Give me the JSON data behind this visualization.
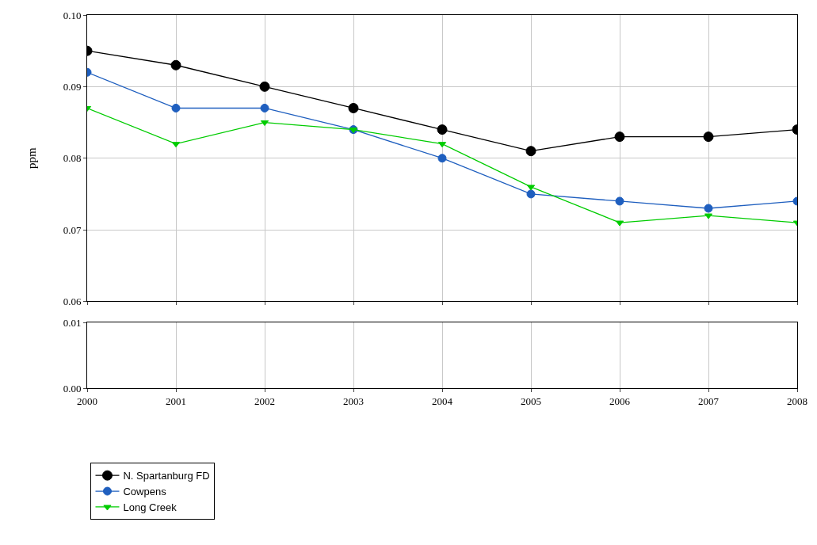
{
  "chart_data": [
    {
      "type": "line",
      "ylabel": "ppm",
      "x": [
        2000,
        2001,
        2002,
        2003,
        2004,
        2005,
        2006,
        2007,
        2008
      ],
      "xlim": [
        2000,
        2008
      ],
      "xticks": [
        2000,
        2001,
        2002,
        2003,
        2004,
        2005,
        2006,
        2007,
        2008
      ],
      "ylim": [
        0.06,
        0.1
      ],
      "yticks": [
        {
          "value": 0.06,
          "label": "0.06"
        },
        {
          "value": 0.07,
          "label": "0.07"
        },
        {
          "value": 0.08,
          "label": "0.08"
        },
        {
          "value": 0.09,
          "label": "0.09"
        },
        {
          "value": 0.1,
          "label": "0.10"
        }
      ],
      "tick_labels": "y",
      "grid": true,
      "legend": "bottom left",
      "line_style": "solid",
      "series": [
        {
          "name": "N. Spartanburg FD",
          "color": "#000000",
          "marker": "circle",
          "values": [
            0.095,
            0.093,
            0.09,
            0.087,
            0.084,
            0.081,
            0.083,
            0.083,
            0.084
          ]
        },
        {
          "name": "Cowpens",
          "color": "#1f5fbf",
          "marker": "circle",
          "values": [
            0.092,
            0.087,
            0.087,
            0.084,
            0.08,
            0.075,
            0.074,
            0.073,
            0.074
          ]
        },
        {
          "name": "Long Creek",
          "color": "#00cc00",
          "marker": "triangle",
          "values": [
            0.087,
            0.082,
            0.085,
            0.084,
            0.082,
            0.076,
            0.071,
            0.072,
            0.071
          ]
        }
      ]
    },
    {
      "type": "line",
      "xlim": [
        2000,
        2008
      ],
      "xticks": [
        2000,
        2001,
        2002,
        2003,
        2004,
        2005,
        2006,
        2007,
        2008
      ],
      "ylim": [
        0.0,
        0.01
      ],
      "yticks": [
        {
          "value": 0.0,
          "label": "0.00"
        },
        {
          "value": 0.01,
          "label": "0.01"
        }
      ],
      "grid": "x"
    }
  ]
}
